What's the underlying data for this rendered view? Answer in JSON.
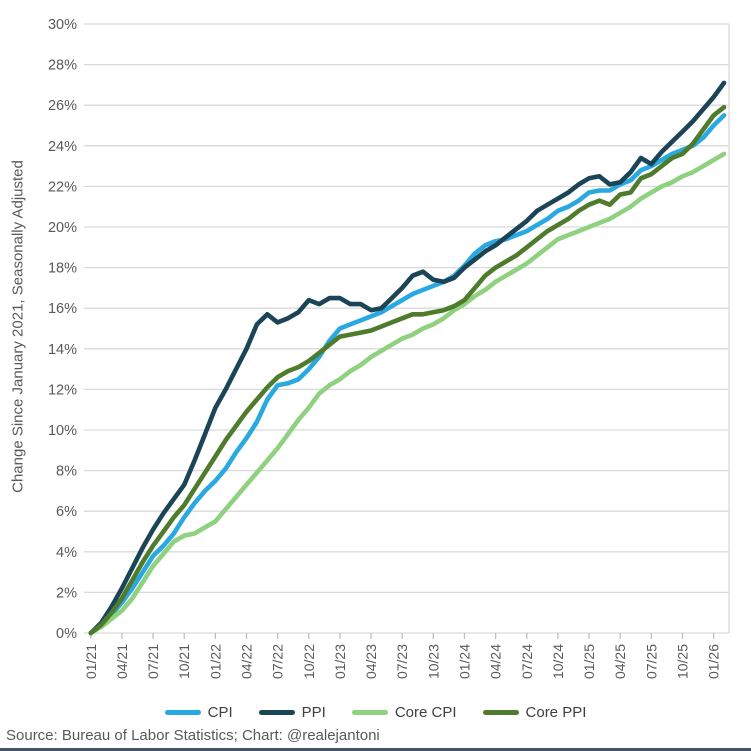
{
  "y_axis_label": "Change Since January 2021, Seasonally Adjusted",
  "source_note": "Source: Bureau of Labor Statistics; Chart: @realejantoni",
  "colors": {
    "grid": "#D9D9D9",
    "tick": "#BFBFBF",
    "axis_text": "#595959",
    "legend_text": "#404040",
    "bottom_rule": "#44546A"
  },
  "chart_data": {
    "type": "line",
    "title": "",
    "xlabel": "",
    "ylabel": "Change Since January 2021, Seasonally Adjusted",
    "ylim": [
      0,
      30
    ],
    "y_tick_step": 2,
    "y_tick_suffix": "%",
    "grid": true,
    "legend_position": "bottom",
    "x_start_label": "01/21",
    "x_tick_interval_months": 3,
    "x_tick_labels": [
      "01/21",
      "04/21",
      "07/21",
      "10/21",
      "01/22",
      "04/22",
      "07/22",
      "10/22",
      "01/23",
      "04/23",
      "07/23",
      "10/23",
      "01/24",
      "04/24",
      "07/24",
      "10/24",
      "01/25",
      "04/25",
      "07/25",
      "10/25",
      "01/26"
    ],
    "series": [
      {
        "name": "CPI",
        "color": "#29A9E1",
        "values": [
          0,
          0.4,
          0.9,
          1.5,
          2.2,
          3,
          3.8,
          4.3,
          4.9,
          5.7,
          6.4,
          7,
          7.5,
          8.1,
          8.9,
          9.6,
          10.4,
          11.5,
          12.2,
          12.3,
          12.5,
          13,
          13.6,
          14.4,
          15,
          15.2,
          15.4,
          15.6,
          15.8,
          16.1,
          16.4,
          16.7,
          16.9,
          17.1,
          17.3,
          17.6,
          18.1,
          18.7,
          19.1,
          19.3,
          19.4,
          19.6,
          19.8,
          20.1,
          20.4,
          20.8,
          21,
          21.3,
          21.7,
          21.8,
          21.8,
          22.1,
          22.3,
          22.8,
          23,
          23.3,
          23.6,
          23.8,
          24,
          24.4,
          25,
          25.5
        ]
      },
      {
        "name": "PPI",
        "color": "#1C4457",
        "values": [
          0,
          0.5,
          1.3,
          2.2,
          3.2,
          4.2,
          5.1,
          5.9,
          6.6,
          7.3,
          8.5,
          9.8,
          11.1,
          12,
          13,
          14,
          15.2,
          15.7,
          15.3,
          15.5,
          15.8,
          16.4,
          16.2,
          16.5,
          16.5,
          16.2,
          16.2,
          15.9,
          16,
          16.5,
          17,
          17.6,
          17.8,
          17.4,
          17.3,
          17.5,
          18,
          18.4,
          18.8,
          19.1,
          19.5,
          19.9,
          20.3,
          20.8,
          21.1,
          21.4,
          21.7,
          22.1,
          22.4,
          22.5,
          22.1,
          22.2,
          22.7,
          23.4,
          23.1,
          23.7,
          24.2,
          24.7,
          25.2,
          25.8,
          26.4,
          27.1
        ]
      },
      {
        "name": "Core CPI",
        "color": "#8FD17E",
        "values": [
          0,
          0.3,
          0.7,
          1.1,
          1.7,
          2.5,
          3.3,
          3.9,
          4.5,
          4.8,
          4.9,
          5.2,
          5.5,
          6.1,
          6.7,
          7.3,
          7.9,
          8.5,
          9.1,
          9.8,
          10.5,
          11.1,
          11.8,
          12.2,
          12.5,
          12.9,
          13.2,
          13.6,
          13.9,
          14.2,
          14.5,
          14.7,
          15,
          15.2,
          15.5,
          15.9,
          16.2,
          16.6,
          16.9,
          17.3,
          17.6,
          17.9,
          18.2,
          18.6,
          19,
          19.4,
          19.6,
          19.8,
          20,
          20.2,
          20.4,
          20.7,
          21,
          21.4,
          21.7,
          22,
          22.2,
          22.5,
          22.7,
          23,
          23.3,
          23.6
        ]
      },
      {
        "name": "Core PPI",
        "color": "#4E7B2C",
        "values": [
          0,
          0.4,
          1,
          1.7,
          2.6,
          3.5,
          4.3,
          5,
          5.7,
          6.3,
          7.1,
          7.9,
          8.7,
          9.5,
          10.2,
          10.9,
          11.5,
          12.1,
          12.6,
          12.9,
          13.1,
          13.4,
          13.8,
          14.2,
          14.6,
          14.7,
          14.8,
          14.9,
          15.1,
          15.3,
          15.5,
          15.7,
          15.7,
          15.8,
          15.9,
          16.1,
          16.4,
          17,
          17.6,
          18,
          18.3,
          18.6,
          19,
          19.4,
          19.8,
          20.1,
          20.4,
          20.8,
          21.1,
          21.3,
          21.1,
          21.6,
          21.7,
          22.4,
          22.6,
          23,
          23.4,
          23.6,
          24.1,
          24.8,
          25.5,
          25.9
        ]
      }
    ]
  }
}
